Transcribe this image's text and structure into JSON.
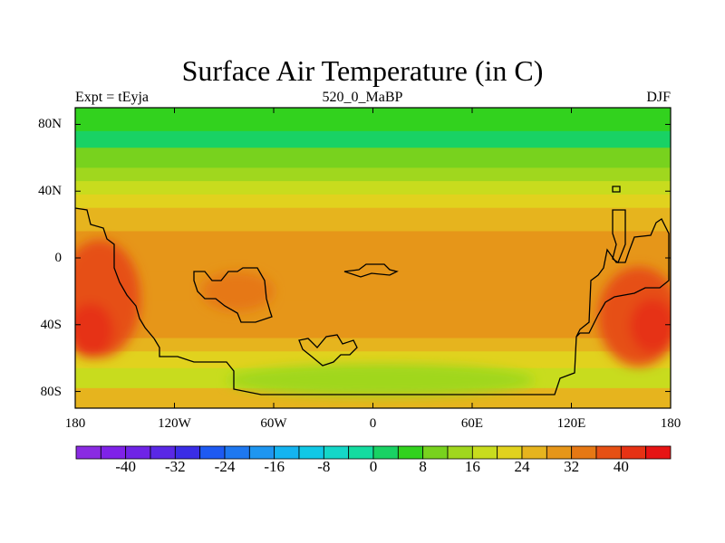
{
  "title": "Surface Air Temperature (in C)",
  "subtitle_left": "Expt = tEyja",
  "subtitle_center": "520_0_MaBP",
  "subtitle_right": "DJF",
  "map": {
    "projection": "cylindrical-equidistant",
    "lon_range": [
      -180,
      180
    ],
    "lat_range": [
      -90,
      90
    ],
    "y_ticks": [
      {
        "lat": 80,
        "label": "80N"
      },
      {
        "lat": 40,
        "label": "40N"
      },
      {
        "lat": 0,
        "label": "0"
      },
      {
        "lat": -40,
        "label": "40S"
      },
      {
        "lat": -80,
        "label": "80S"
      }
    ],
    "x_ticks": [
      {
        "lon": -180,
        "label": "180"
      },
      {
        "lon": -120,
        "label": "120W"
      },
      {
        "lon": -60,
        "label": "60W"
      },
      {
        "lon": 0,
        "label": "0"
      },
      {
        "lon": 60,
        "label": "60E"
      },
      {
        "lon": 120,
        "label": "120E"
      },
      {
        "lon": 180,
        "label": "180"
      }
    ],
    "zonal_temperature_bands": [
      {
        "lat_from": 90,
        "lat_to": 76,
        "temp": 4
      },
      {
        "lat_from": 76,
        "lat_to": 66,
        "temp": 2
      },
      {
        "lat_from": 66,
        "lat_to": 54,
        "temp": 8
      },
      {
        "lat_from": 54,
        "lat_to": 46,
        "temp": 14
      },
      {
        "lat_from": 46,
        "lat_to": 38,
        "temp": 18
      },
      {
        "lat_from": 38,
        "lat_to": 30,
        "temp": 22
      },
      {
        "lat_from": 30,
        "lat_to": 16,
        "temp": 26
      },
      {
        "lat_from": 16,
        "lat_to": -8,
        "temp": 28
      },
      {
        "lat_from": -8,
        "lat_to": -26,
        "temp": 30
      },
      {
        "lat_from": -26,
        "lat_to": -48,
        "temp": 28
      },
      {
        "lat_from": -48,
        "lat_to": -56,
        "temp": 24
      },
      {
        "lat_from": -56,
        "lat_to": -66,
        "temp": 20
      },
      {
        "lat_from": -66,
        "lat_to": -78,
        "temp": 16
      },
      {
        "lat_from": -78,
        "lat_to": -90,
        "temp": 24
      }
    ]
  },
  "colorbar": {
    "colors": [
      "#8a2be2",
      "#7f22e8",
      "#6f24e6",
      "#5a28e6",
      "#3a2de6",
      "#1e5af2",
      "#1e78f0",
      "#1e96f0",
      "#14b4f0",
      "#10c8e6",
      "#14d7c8",
      "#14dca0",
      "#19d264",
      "#32d21e",
      "#78d21e",
      "#a0d71e",
      "#c8dc1e",
      "#e1d21e",
      "#e6b41e",
      "#e69619",
      "#e67814",
      "#e65014",
      "#e63214",
      "#e61414"
    ],
    "tick_labels": [
      "-40",
      "-32",
      "-24",
      "-16",
      "-8",
      "0",
      "8",
      "16",
      "24",
      "32",
      "40"
    ],
    "tick_values": [
      -40,
      -32,
      -24,
      -16,
      -8,
      0,
      8,
      16,
      24,
      32,
      40
    ],
    "range": [
      -48,
      48
    ]
  }
}
